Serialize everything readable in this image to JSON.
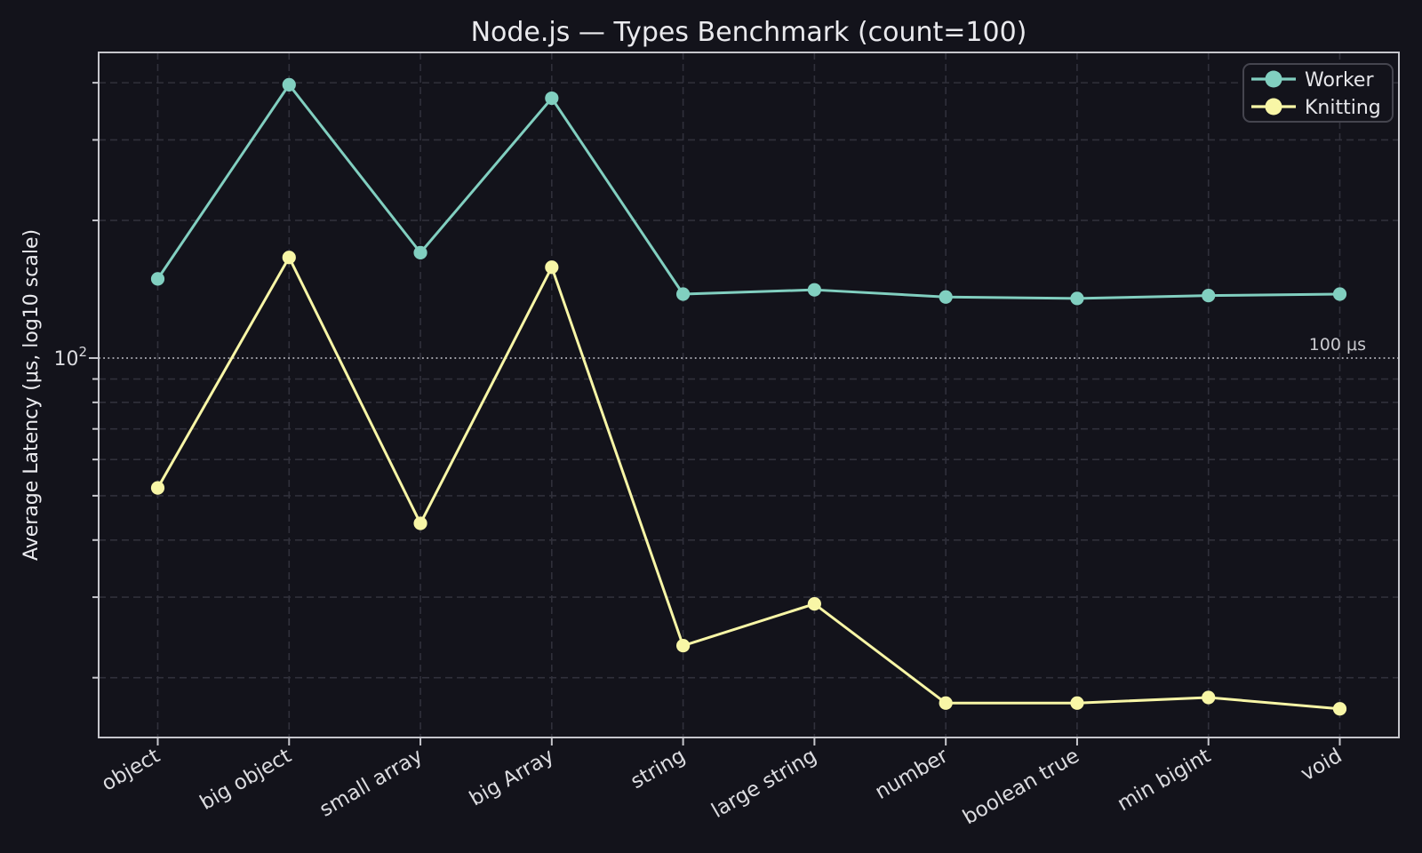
{
  "chart_data": {
    "type": "line",
    "title": "Node.js — Types Benchmark (count=100)",
    "ylabel": "Average Latency (μs, log10 scale)",
    "xlabel": "",
    "yscale": "log10",
    "ylim": [
      14.8,
      466
    ],
    "grid": true,
    "legend_position": "upper right",
    "categories": [
      "object",
      "big object",
      "small array",
      "big Array",
      "string",
      "large string",
      "number",
      "boolean true",
      "min bigint",
      "void"
    ],
    "series": [
      {
        "name": "Worker",
        "color": "#81cfc0",
        "values": [
          149,
          396,
          170,
          370,
          138,
          141,
          136,
          135,
          137,
          138
        ]
      },
      {
        "name": "Knitting",
        "color": "#f8f6a6",
        "values": [
          52,
          166,
          43.5,
          158,
          23.5,
          29,
          17.6,
          17.6,
          18.1,
          17.1
        ]
      }
    ],
    "major_ytick": {
      "base": "10",
      "exponent": "2",
      "value": 100
    },
    "minor_ytick_values": [
      20,
      30,
      40,
      50,
      60,
      70,
      80,
      90,
      200,
      300,
      400
    ],
    "reference_line": {
      "label": "100 μs",
      "value": 100
    },
    "palette": {
      "background": "#13131b",
      "grid": "#30303b",
      "spine": "#c6c6cc",
      "title_text": "#eaeaee",
      "tick_text": "#dcdce0",
      "annotation_text": "#c9c9ce",
      "reference_line": "#b3b3ba",
      "legend_border": "#45454f",
      "legend_text": "#e6e6ea"
    }
  }
}
